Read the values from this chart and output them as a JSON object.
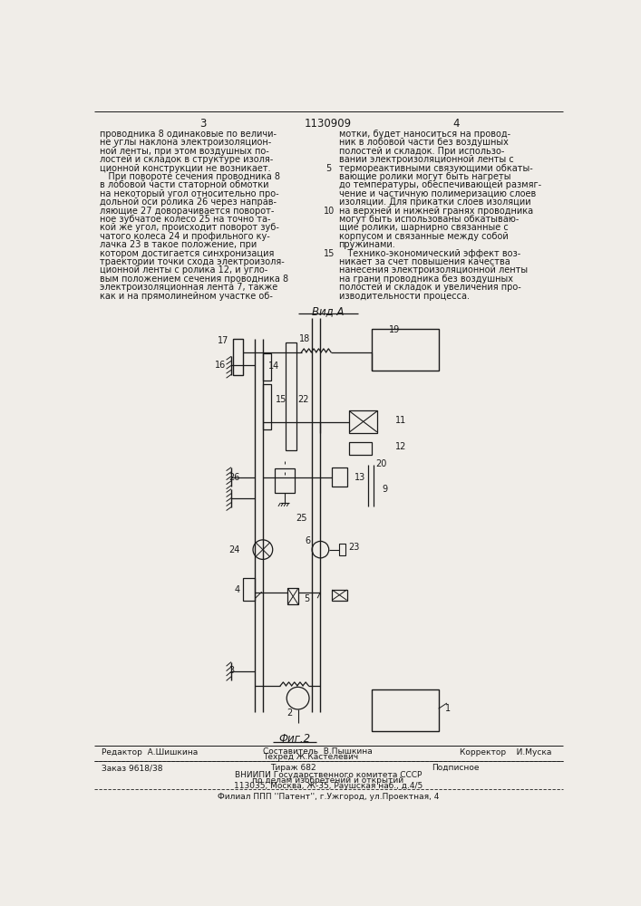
{
  "page_number_left": "3",
  "patent_number": "1130909",
  "page_number_right": "4",
  "background_color": "#f0ede8",
  "text_color": "#1a1a1a",
  "left_column_text": [
    "проводника 8 одинаковые по величи-",
    "не углы наклона электроизоляцион-",
    "ной ленты, при этом воздушных по-",
    "лостей и складок в структуре изоля-",
    "ционной конструкции не возникает.",
    "   При повороте сечения проводника 8",
    "в лобовой части статорной обмотки",
    "на некоторый угол относительно про-",
    "дольной оси ролика 26 через направ-",
    "ляющие 27 доворачивается поворот-",
    "ное зубчатое колесо 25 на точно та-",
    "кой же угол, происходит поворот зуб-",
    "чатого колеса 24 и профильного ку-",
    "лачка 23 в такое положение, при",
    "котором достигается синхронизация",
    "траектории точки схода электроизоля-",
    "ционной ленты с ролика 12, и угло-",
    "вым положением сечения проводника 8",
    "электроизоляционная лента 7, также",
    "как и на прямолинейном участке об-"
  ],
  "right_column_text": [
    "мотки, будет наноситься на провод-",
    "ник в лобовой части без воздушных",
    "полостей и складок. При использо-",
    "вании электроизоляционной ленты с",
    "термореактивными связующими обкаты-",
    "вающие ролики могут быть нагреты",
    "до температуры, обеспечивающей размяг-",
    "чение и частичную полимеризацию слоев",
    "изоляции. Для прикатки слоев изоляции",
    "на верхней и нижней гранях проводника",
    "могут быть использованы обкатываю-",
    "щие ролики, шарнирно связанные с",
    "корпусом и связанные между собой",
    "пружинами.",
    "   Технико-экономический эффект воз-",
    "никает за счет повышения качества",
    "нанесения электроизоляционной ленты",
    "на грани проводника без воздушных",
    "полостей и складок и увеличения про-",
    "изводительности процесса."
  ],
  "diagram_label": "Вид А",
  "figure_label": "Фиг.2",
  "editor_line": "Редактор  А.Шишкина",
  "composer_line": "Составитель  В.Пышкина",
  "techred_line": "Техред Ж.Кастелевич",
  "corrector_line": "Корректор    И.Муска",
  "order_line": "Заказ 9618/38",
  "tirazh_line": "Тираж 682",
  "podpisnoe_line": "Подписное",
  "vniiipi_line": "ВНИИПИ Государственного комитета СССР",
  "vniiipi_line2": "по делам изобретений и открытий",
  "vniiipi_line3": "113035, Москва, Ж-35, Раушская наб., д.4/5",
  "filial_line": "Филиал ППП ''Патент'', г.Ужгород, ул.Проектная, 4",
  "font_size_text": 7.0,
  "font_size_header": 8.5,
  "font_size_label": 8.5,
  "font_size_footer": 6.5
}
